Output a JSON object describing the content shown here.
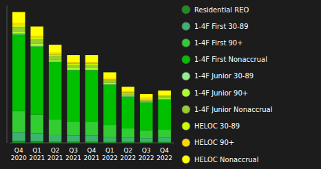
{
  "chart_data": {
    "type": "bar",
    "stacked": true,
    "legend": "right",
    "tick_labels": "x",
    "categories": [
      "Q4\n2020",
      "Q1\n2021",
      "Q2\n2021",
      "Q3\n2021",
      "Q4\n2021",
      "Q1\n2022",
      "Q2\n2022",
      "Q3\n2022",
      "Q4\n2022"
    ],
    "ylim": [
      0,
      3.234
    ],
    "series": [
      {
        "name": "Residential REO",
        "color": "#228B22",
        "values": [
          0.05,
          0.04,
          0.03,
          0.03,
          0.03,
          0.02,
          0.02,
          0.02,
          0.02
        ]
      },
      {
        "name": "1-4F First 30-89",
        "color": "#3CB371",
        "values": [
          0.2,
          0.18,
          0.15,
          0.14,
          0.14,
          0.12,
          0.1,
          0.09,
          0.1
        ]
      },
      {
        "name": "1-4F First 90+",
        "color": "#32CD32",
        "values": [
          0.5,
          0.45,
          0.38,
          0.34,
          0.34,
          0.28,
          0.22,
          0.19,
          0.2
        ]
      },
      {
        "name": "1-4F First Nonaccrual",
        "color": "#00C000",
        "values": [
          1.8,
          1.6,
          1.35,
          1.2,
          1.2,
          0.95,
          0.75,
          0.65,
          0.7
        ]
      },
      {
        "name": "1-4F Junior 30-89",
        "color": "#90EE90",
        "values": [
          0.03,
          0.025,
          0.02,
          0.018,
          0.018,
          0.012,
          0.01,
          0.009,
          0.01
        ]
      },
      {
        "name": "1-4F Junior 90+",
        "color": "#ADFF2F",
        "values": [
          0.05,
          0.045,
          0.038,
          0.034,
          0.034,
          0.028,
          0.022,
          0.019,
          0.02
        ]
      },
      {
        "name": "1-4F Junior Nonaccrual",
        "color": "#9ACD32",
        "values": [
          0.1,
          0.09,
          0.076,
          0.068,
          0.068,
          0.054,
          0.042,
          0.036,
          0.039
        ]
      },
      {
        "name": "HELOC 30-89",
        "color": "#CCFF00",
        "values": [
          0.05,
          0.045,
          0.038,
          0.034,
          0.034,
          0.028,
          0.024,
          0.021,
          0.023
        ]
      },
      {
        "name": "HELOC 90+",
        "color": "#FFD700",
        "values": [
          0.05,
          0.045,
          0.038,
          0.034,
          0.034,
          0.028,
          0.022,
          0.019,
          0.02
        ]
      },
      {
        "name": "HELOC Nonaccrual",
        "color": "#FFFF00",
        "values": [
          0.25,
          0.22,
          0.19,
          0.17,
          0.17,
          0.14,
          0.11,
          0.095,
          0.102
        ]
      }
    ]
  }
}
